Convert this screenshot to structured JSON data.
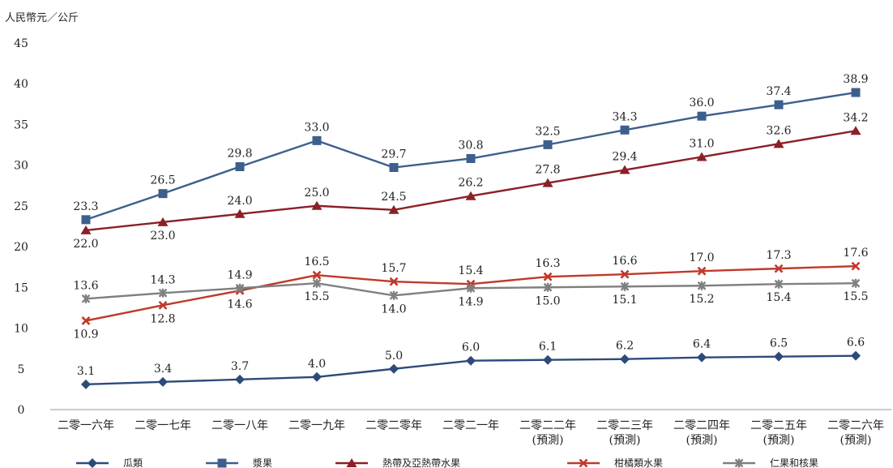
{
  "chart_data": {
    "type": "line",
    "ylabel": "人民幣元／公斤",
    "ylim": [
      0,
      45
    ],
    "yticks": [
      0,
      5,
      10,
      15,
      20,
      25,
      30,
      35,
      40,
      45
    ],
    "grid": false,
    "legend_position": "bottom",
    "categories": [
      [
        "二零一六年"
      ],
      [
        "二零一七年"
      ],
      [
        "二零一八年"
      ],
      [
        "二零一九年"
      ],
      [
        "二零二零年"
      ],
      [
        "二零二一年"
      ],
      [
        "二零二二年",
        "(預測)"
      ],
      [
        "二零二三年",
        "(預測)"
      ],
      [
        "二零二四年",
        "(預測)"
      ],
      [
        "二零二五年",
        "(預測)"
      ],
      [
        "二零二六年",
        "(預測)"
      ]
    ],
    "series": [
      {
        "name": "瓜類",
        "color": "#2E4A7A",
        "marker": "diamond",
        "label_pos": "above",
        "labels": [
          "3.1",
          "3.4",
          "3.7",
          "4.0",
          "5.0",
          "6.0",
          "6.1",
          "6.2",
          "6.4",
          "6.5",
          "6.6"
        ],
        "values": [
          3.1,
          3.4,
          3.7,
          4.0,
          5.0,
          6.0,
          6.1,
          6.2,
          6.4,
          6.5,
          6.6
        ]
      },
      {
        "name": "漿果",
        "color": "#3D5F8C",
        "marker": "square",
        "label_pos": "above",
        "labels": [
          "23.3",
          "26.5",
          "29.8",
          "33.0",
          "29.7",
          "30.8",
          "32.5",
          "34.3",
          "36.0",
          "37.4",
          "38.9"
        ],
        "values": [
          23.3,
          26.5,
          29.8,
          33.0,
          29.7,
          30.8,
          32.5,
          34.3,
          36.0,
          37.4,
          38.9
        ]
      },
      {
        "name": "熱帶及亞熱帶水果",
        "color": "#8B2027",
        "marker": "triangle",
        "label_pos": "below-first-two-then-above",
        "labels": [
          "22.0",
          "23.0",
          "24.0",
          "25.0",
          "24.5",
          "26.2",
          "27.8",
          "29.4",
          "31.0",
          "32.6",
          "34.2"
        ],
        "values": [
          22.0,
          23.0,
          24.0,
          25.0,
          24.5,
          26.2,
          27.8,
          29.4,
          31.0,
          32.6,
          34.2
        ]
      },
      {
        "name": "柑橘類水果",
        "color": "#C0392B",
        "marker": "x",
        "label_pos": "mixed",
        "labels": [
          "10.9",
          "12.8",
          "14.6",
          "16.5",
          "15.7",
          "15.4",
          "16.3",
          "16.6",
          "17.0",
          "17.3",
          "17.6"
        ],
        "values": [
          10.9,
          12.8,
          14.6,
          16.5,
          15.7,
          15.4,
          16.3,
          16.6,
          17.0,
          17.3,
          17.6
        ]
      },
      {
        "name": "仁果和核果",
        "color": "#808080",
        "marker": "star",
        "label_pos": "mixed",
        "labels": [
          "13.6",
          "14.3",
          "14.9",
          "15.5",
          "14.0",
          "14.9",
          "15.0",
          "15.1",
          "15.2",
          "15.4",
          "15.5"
        ],
        "values": [
          13.6,
          14.3,
          14.9,
          15.5,
          14.0,
          14.9,
          15.0,
          15.1,
          15.2,
          15.4,
          15.5
        ]
      }
    ]
  }
}
